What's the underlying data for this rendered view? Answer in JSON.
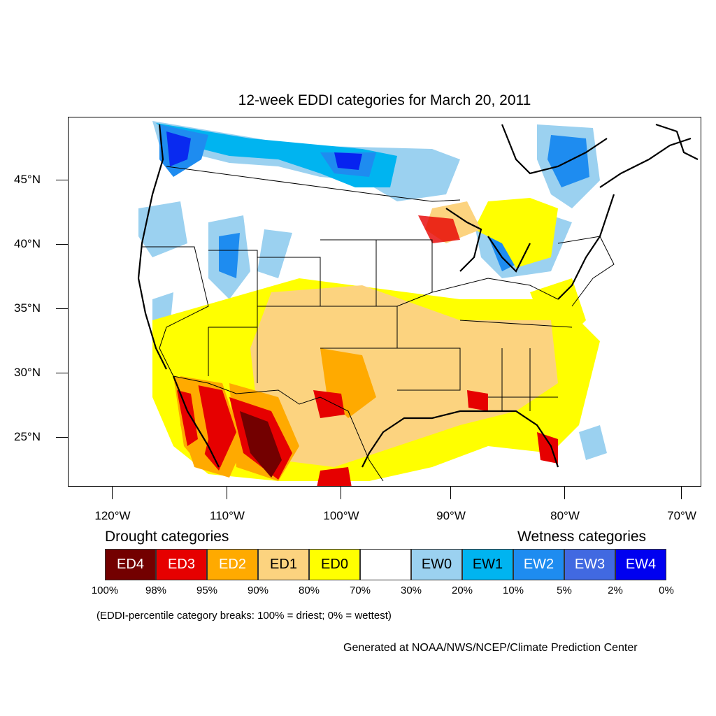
{
  "title": "12-week EDDI categories for March 20, 2011",
  "lat_labels": [
    "45°N",
    "40°N",
    "35°N",
    "30°N",
    "25°N"
  ],
  "lon_labels": [
    "120°W",
    "110°W",
    "100°W",
    "90°W",
    "80°W",
    "70°W"
  ],
  "legend": {
    "drought_heading": "Drought categories",
    "wetness_heading": "Wetness categories",
    "categories": [
      {
        "label": "ED4",
        "color": "#730000",
        "text_color": "#ffffff"
      },
      {
        "label": "ED3",
        "color": "#e60000",
        "text_color": "#ffffff"
      },
      {
        "label": "ED2",
        "color": "#ffaa00",
        "text_color": "#ffffff"
      },
      {
        "label": "ED1",
        "color": "#fcd37f",
        "text_color": "#000000"
      },
      {
        "label": "ED0",
        "color": "#ffff00",
        "text_color": "#000000"
      },
      {
        "label": "",
        "color": "#ffffff",
        "text_color": "#000000"
      },
      {
        "label": "EW0",
        "color": "#9bd1f0",
        "text_color": "#000000"
      },
      {
        "label": "EW1",
        "color": "#00b4f0",
        "text_color": "#000000"
      },
      {
        "label": "EW2",
        "color": "#1e8cf0",
        "text_color": "#ffffff"
      },
      {
        "label": "EW3",
        "color": "#4169e1",
        "text_color": "#ffffff"
      },
      {
        "label": "EW4",
        "color": "#0000f0",
        "text_color": "#ffffff"
      }
    ],
    "percentiles": [
      "100%",
      "98%",
      "95%",
      "90%",
      "80%",
      "70%",
      "30%",
      "20%",
      "10%",
      "5%",
      "2%",
      "0%"
    ]
  },
  "note": "(EDDI-percentile category breaks: 100% = driest; 0% = wettest)",
  "credit": "Generated at NOAA/NWS/NCEP/Climate Prediction Center"
}
